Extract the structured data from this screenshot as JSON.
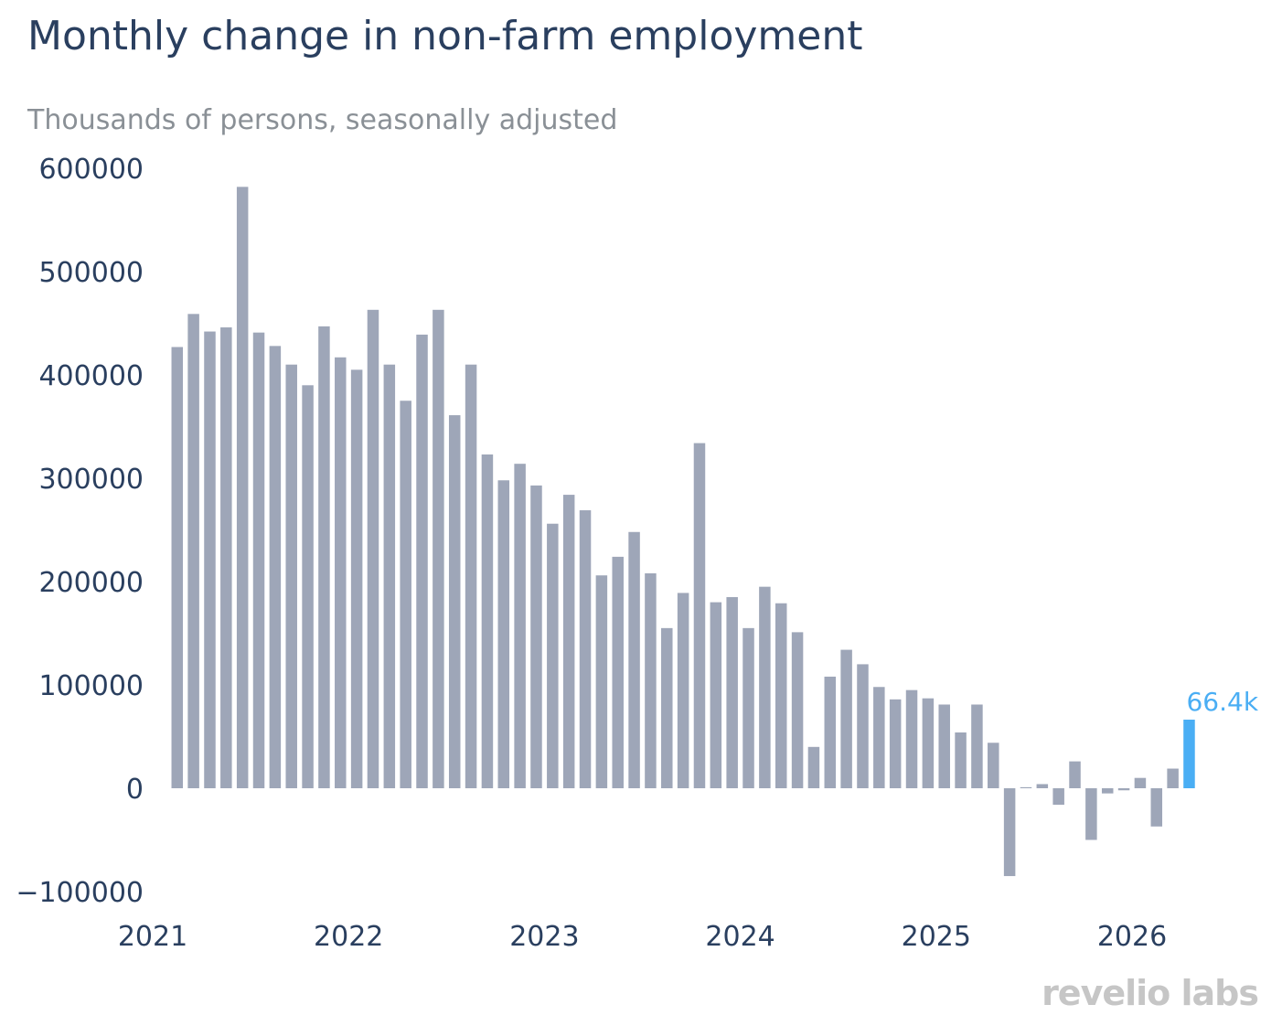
{
  "chart_data": {
    "type": "bar",
    "title": "Monthly change in non-farm employment",
    "subtitle": "Thousands of persons, seasonally adjusted",
    "xlabel": "",
    "ylabel": "",
    "ylim": [
      -100000,
      600000
    ],
    "y_ticks": [
      "600000",
      "500000",
      "400000",
      "300000",
      "200000",
      "100000",
      "0",
      "−100000"
    ],
    "y_tick_values": [
      600000,
      500000,
      400000,
      300000,
      200000,
      100000,
      0,
      -100000
    ],
    "x_ticks": [
      "2021",
      "2022",
      "2023",
      "2024",
      "2025",
      "2026"
    ],
    "x_tick_years": [
      2021,
      2022,
      2023,
      2024,
      2025,
      2026
    ],
    "start": "2021-02",
    "values": [
      427000,
      459000,
      442000,
      446000,
      582000,
      441000,
      428000,
      410000,
      390000,
      447000,
      417000,
      405000,
      463000,
      410000,
      375000,
      439000,
      463000,
      361000,
      410000,
      323000,
      298000,
      314000,
      293000,
      256000,
      284000,
      269000,
      206000,
      224000,
      248000,
      208000,
      155000,
      189000,
      334000,
      180000,
      185000,
      155000,
      195000,
      179000,
      151000,
      40000,
      108000,
      134000,
      120000,
      98000,
      86000,
      95000,
      87000,
      81000,
      54000,
      81000,
      44000,
      -85000,
      1000,
      4000,
      -16000,
      26000,
      -50000,
      -5000,
      -2000,
      10000,
      -37000,
      19000,
      66400
    ],
    "highlight_index": 62,
    "highlight_label": "66.4k",
    "bar_color": "#9ea6b8",
    "highlight_color": "#4aaef4",
    "tick_color": "#2a3f5f",
    "grid": false,
    "legend": false
  },
  "branding": {
    "logo_text": "revelio labs"
  }
}
